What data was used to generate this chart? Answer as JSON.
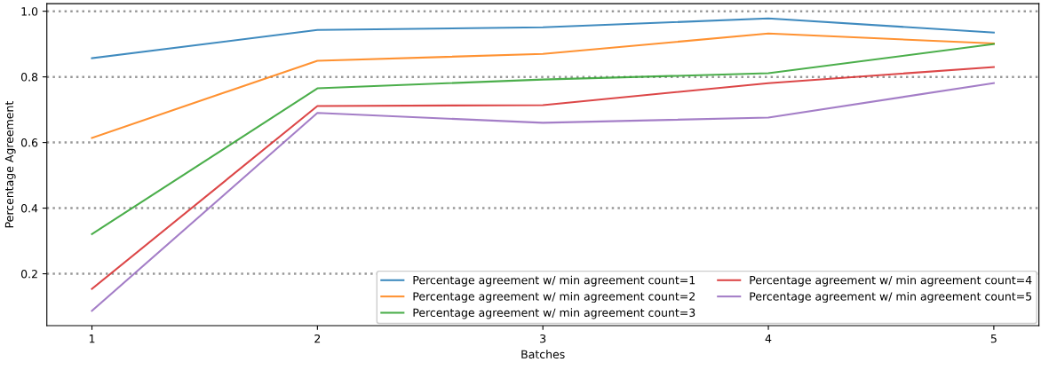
{
  "chart_data": {
    "type": "line",
    "xlabel": "Batches",
    "ylabel": "Percentage Agreement",
    "x": [
      1,
      2,
      3,
      4,
      5
    ],
    "xlim": [
      0.8,
      5.2
    ],
    "xticks": [
      1,
      2,
      3,
      4,
      5
    ],
    "ylim": [
      0.042,
      1.023
    ],
    "yticks": [
      0.2,
      0.4,
      0.6,
      0.8,
      {
        "value": 1,
        "label": "1.0"
      }
    ],
    "grid": "y",
    "line_style": "solid",
    "legend": "bottom right",
    "series": [
      {
        "name": "Percentage agreement w/ min agreement count=1",
        "color": "#1f77b4",
        "values": [
          0.857,
          0.943,
          0.951,
          0.978,
          0.935
        ]
      },
      {
        "name": "Percentage agreement w/ min agreement count=2",
        "color": "#ff7f0e",
        "values": [
          0.614,
          0.849,
          0.87,
          0.932,
          0.902
        ]
      },
      {
        "name": "Percentage agreement w/ min agreement count=3",
        "color": "#2ca02c",
        "values": [
          0.321,
          0.765,
          0.792,
          0.811,
          0.9
        ]
      },
      {
        "name": "Percentage agreement w/ min agreement count=4",
        "color": "#d62728",
        "values": [
          0.154,
          0.711,
          0.714,
          0.781,
          0.83
        ]
      },
      {
        "name": "Percentage agreement w/ min agreement count=5",
        "color": "#9467bd",
        "values": [
          0.087,
          0.69,
          0.66,
          0.676,
          0.781
        ]
      }
    ]
  }
}
